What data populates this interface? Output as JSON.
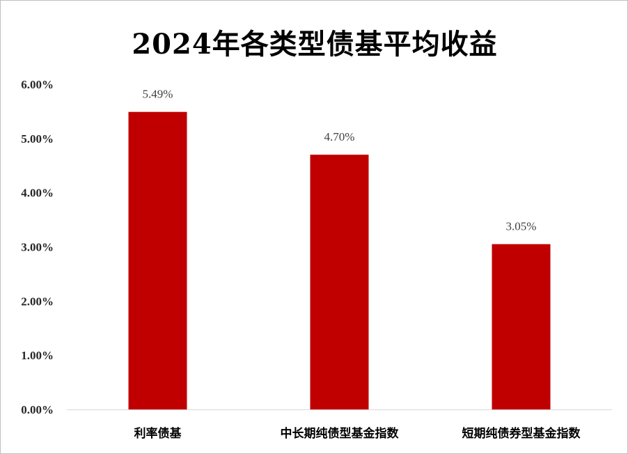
{
  "chart_data": {
    "type": "bar",
    "title": "2024年各类型债基平均收益",
    "categories": [
      "利率债基",
      "中长期纯债型基金指数",
      "短期纯债券型基金指数"
    ],
    "values": [
      5.49,
      4.7,
      3.05
    ],
    "data_labels": [
      "5.49%",
      "4.70%",
      "3.05%"
    ],
    "ylim": [
      0,
      6
    ],
    "yticks": [
      0,
      1,
      2,
      3,
      4,
      5,
      6
    ],
    "ytick_labels": [
      "0.00%",
      "1.00%",
      "2.00%",
      "3.00%",
      "4.00%",
      "5.00%",
      "6.00%"
    ],
    "xlabel": "",
    "ylabel": "",
    "grid": false,
    "bar_color": "#c00000"
  }
}
